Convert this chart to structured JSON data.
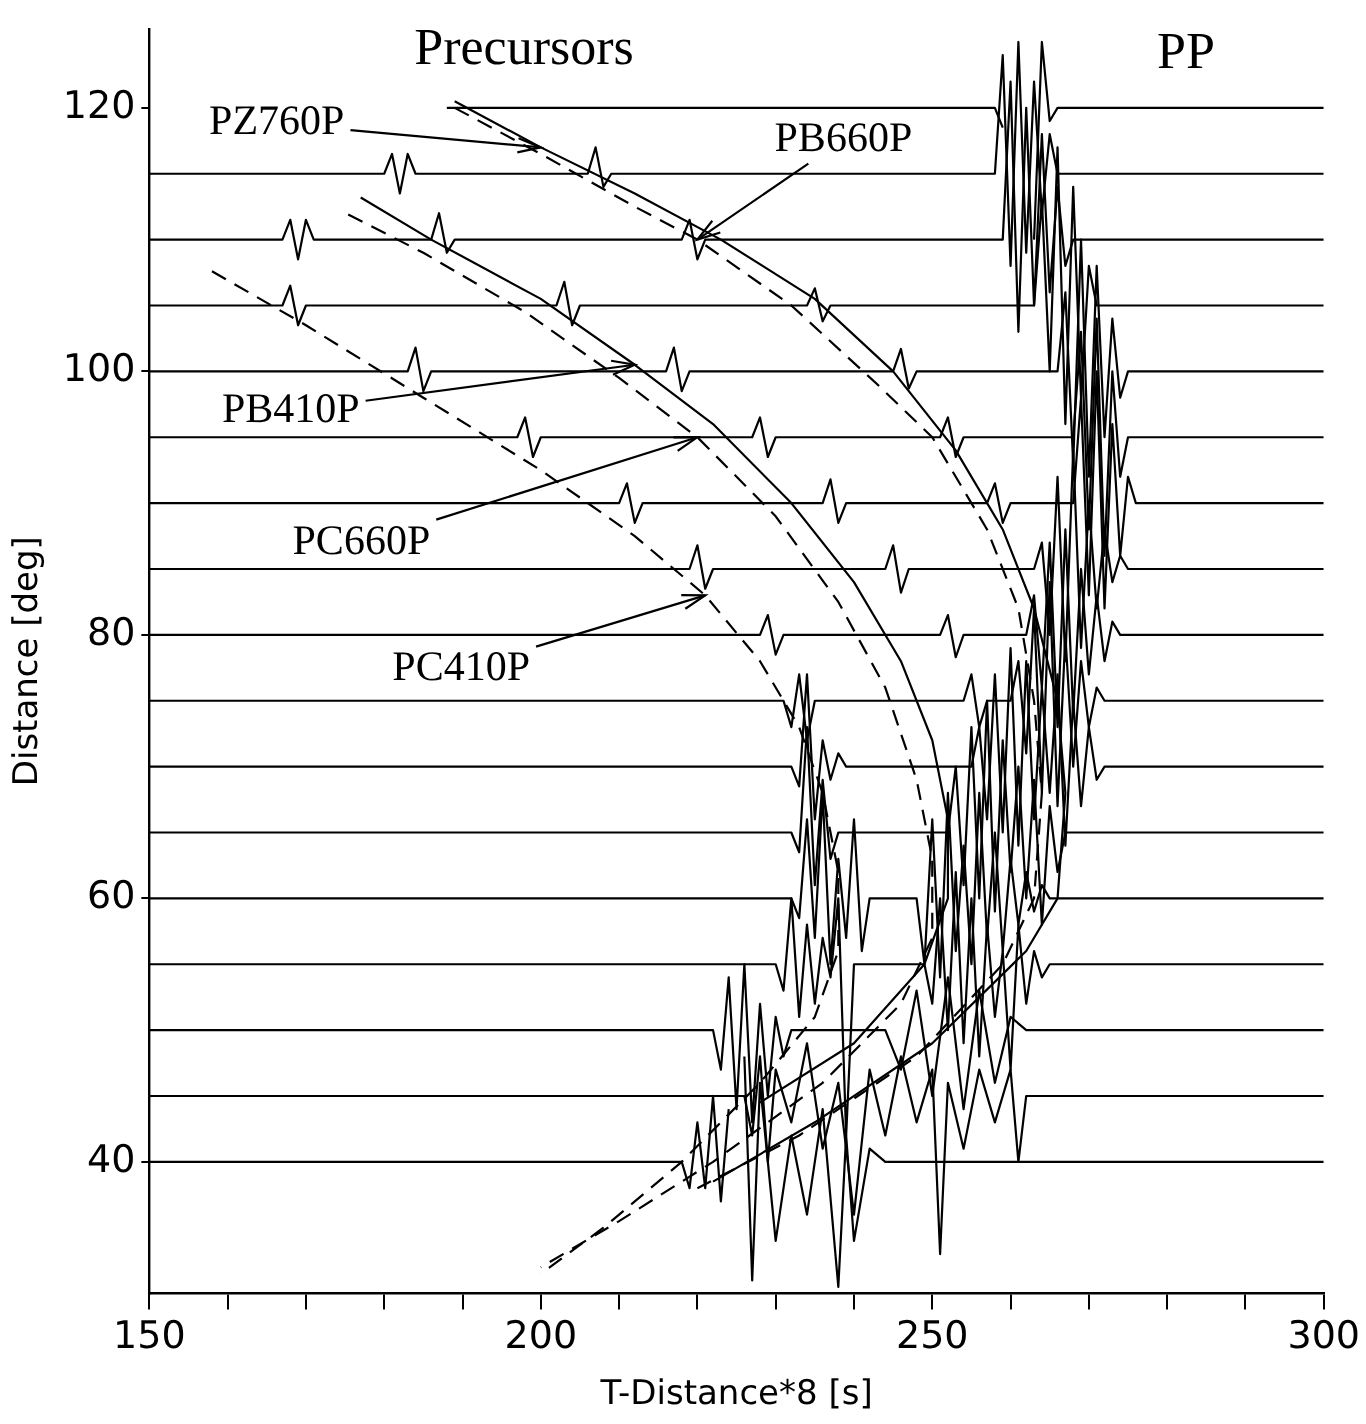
{
  "chart_data": {
    "type": "line",
    "xlabel": "T-Distance*8 [s]",
    "ylabel": "Distance [deg]",
    "xlim": [
      150,
      300
    ],
    "ylim": [
      30,
      126
    ],
    "xticks": [
      150,
      {
        "value": 160,
        "label": null
      },
      {
        "value": 170,
        "label": null
      },
      {
        "value": 180,
        "label": null
      },
      {
        "value": 190,
        "label": null
      },
      200,
      {
        "value": 210,
        "label": null
      },
      {
        "value": 220,
        "label": null
      },
      {
        "value": 230,
        "label": null
      },
      {
        "value": 240,
        "label": null
      },
      250,
      {
        "value": 260,
        "label": null
      },
      {
        "value": 270,
        "label": null
      },
      {
        "value": 280,
        "label": null
      },
      {
        "value": 290,
        "label": null
      },
      300
    ],
    "yticks": [
      40,
      60,
      80,
      100,
      120
    ],
    "grid": false,
    "legend": false,
    "marker": "none",
    "annotations": [
      "Precursors",
      "PP",
      {
        "text": "PZ760P",
        "x": 200,
        "y": 117
      },
      {
        "text": "PB660P",
        "x": 220,
        "y": 110
      },
      {
        "text": "PB410P",
        "x": 212,
        "y": 100.5
      },
      {
        "text": "PC660P",
        "x": 220,
        "y": 95
      },
      {
        "text": "PC410P",
        "x": 221,
        "y": 83
      }
    ],
    "series": [
      {
        "type": "line",
        "color": "#000000",
        "line_style": "solid",
        "x": [
          188,
          258,
          259,
          260,
          261,
          262,
          263,
          264,
          265,
          266,
          300
        ],
        "values": [
          120,
          120,
          118.5,
          null,
          null,
          null,
          110,
          125,
          119,
          120,
          120
        ]
      },
      {
        "type": "line",
        "color": "#000000",
        "line_style": "solid",
        "x": [
          150,
          180,
          181,
          182,
          183,
          184,
          206,
          207,
          208,
          209,
          258,
          259,
          260,
          261,
          262,
          263,
          264,
          265,
          266,
          267,
          300
        ],
        "values": [
          115,
          115,
          116.5,
          113.5,
          116.5,
          115,
          115,
          117,
          114,
          115,
          115,
          124,
          108,
          125,
          109,
          122,
          112,
          118,
          115,
          115,
          115
        ]
      },
      {
        "type": "line",
        "color": "#000000",
        "line_style": "solid",
        "x": [
          150,
          167,
          168,
          169,
          170,
          171,
          186,
          187,
          188,
          189,
          218,
          219,
          220,
          221,
          259,
          260,
          261,
          262,
          263,
          264,
          265,
          266,
          267,
          268,
          300
        ],
        "values": [
          110,
          110,
          111.5,
          108.5,
          111.5,
          110,
          110,
          112,
          109,
          110,
          110,
          111.5,
          108.5,
          110,
          110,
          122,
          103,
          120,
          105,
          118,
          106,
          114,
          108,
          110,
          110
        ]
      },
      {
        "type": "line",
        "color": "#000000",
        "line_style": "solid",
        "x": [
          150,
          167,
          168,
          169,
          170,
          202,
          203,
          204,
          205,
          234,
          235,
          236,
          237,
          263,
          264,
          265,
          266,
          267,
          268,
          269,
          270,
          271,
          300
        ],
        "values": [
          105,
          105,
          106.5,
          103.5,
          105,
          105,
          106.8,
          103.5,
          105,
          105,
          106.3,
          103.8,
          105,
          105,
          113,
          100,
          117,
          96,
          114,
          98,
          108,
          105,
          105
        ]
      },
      {
        "type": "line",
        "color": "#000000",
        "line_style": "solid",
        "x": [
          150,
          183,
          184,
          185,
          186,
          216,
          217,
          218,
          219,
          245,
          246,
          247,
          248,
          266,
          267,
          268,
          269,
          270,
          271,
          272,
          273,
          274,
          275,
          300
        ],
        "values": [
          100,
          100,
          101.8,
          98.5,
          100,
          100,
          101.8,
          98.5,
          100,
          100,
          101.7,
          98.7,
          100,
          100,
          106,
          93,
          110,
          92,
          108,
          95,
          104,
          98,
          100,
          100
        ]
      },
      {
        "type": "line",
        "color": "#000000",
        "line_style": "solid",
        "x": [
          150,
          197,
          198,
          199,
          200,
          227,
          228,
          229,
          230,
          251,
          252,
          253,
          254,
          268,
          269,
          270,
          271,
          272,
          273,
          274,
          275,
          300
        ],
        "values": [
          95,
          95,
          96.5,
          93.5,
          95,
          95,
          96.5,
          93.5,
          95,
          95,
          96.5,
          93.5,
          95,
          95,
          103,
          88,
          104,
          86,
          100,
          92,
          95,
          95
        ]
      },
      {
        "type": "line",
        "color": "#000000",
        "line_style": "solid",
        "x": [
          150,
          210,
          211,
          212,
          213,
          236,
          237,
          238,
          239,
          257,
          258,
          259,
          260,
          268,
          269,
          270,
          271,
          272,
          273,
          274,
          275,
          276,
          300
        ],
        "values": [
          90,
          90,
          91.5,
          88.5,
          90,
          90,
          91.8,
          88.5,
          90,
          90,
          91.5,
          88.5,
          90,
          90,
          98,
          83,
          100,
          82,
          96,
          86,
          92,
          90,
          90
        ]
      },
      {
        "type": "line",
        "color": "#000000",
        "line_style": "solid",
        "x": [
          150,
          219,
          220,
          221,
          222,
          244,
          245,
          246,
          247,
          263,
          264,
          265,
          266,
          267,
          268,
          269,
          270,
          271,
          272,
          273,
          274,
          275,
          300
        ],
        "values": [
          85,
          85,
          86.8,
          83.5,
          85,
          85,
          86.8,
          83.2,
          85,
          85,
          87,
          80,
          92,
          78,
          94,
          79,
          90,
          82,
          88,
          84,
          86,
          85,
          85
        ]
      },
      {
        "type": "line",
        "color": "#000000",
        "line_style": "solid",
        "x": [
          150,
          228,
          229,
          230,
          231,
          251,
          252,
          253,
          254,
          262,
          263,
          264,
          265,
          266,
          267,
          268,
          269,
          270,
          271,
          272,
          273,
          274,
          300
        ],
        "values": [
          80,
          80,
          81.5,
          78.5,
          80,
          80,
          81.5,
          78.3,
          80,
          80,
          83,
          76,
          87,
          73,
          88,
          74,
          85,
          77,
          83,
          78,
          81,
          80,
          80
        ]
      },
      {
        "type": "line",
        "color": "#000000",
        "line_style": "solid",
        "x": [
          150,
          231,
          232,
          233,
          234,
          235,
          254,
          255,
          256,
          257,
          260,
          261,
          262,
          263,
          264,
          265,
          266,
          267,
          268,
          269,
          270,
          271,
          272,
          300
        ],
        "values": [
          75,
          75,
          73,
          77,
          72,
          75,
          75,
          77,
          73,
          75,
          75,
          78,
          71,
          82,
          68,
          84,
          67,
          80,
          70,
          78,
          73,
          76,
          75,
          75
        ]
      },
      {
        "type": "line",
        "color": "#000000",
        "line_style": "solid",
        "x": [
          150,
          232,
          233,
          234,
          235,
          236,
          237,
          238,
          239,
          255,
          256,
          257,
          258,
          259,
          260,
          261,
          262,
          263,
          264,
          265,
          266,
          267,
          268,
          269,
          270,
          271,
          272,
          300
        ],
        "values": [
          70,
          70,
          68.5,
          77,
          66,
          72,
          69,
          71,
          70,
          70,
          73,
          66,
          77,
          65,
          79,
          64,
          78,
          66,
          76,
          68,
          77,
          64,
          75,
          67,
          73,
          69,
          70,
          70
        ]
      },
      {
        "type": "line",
        "color": "#000000",
        "line_style": "solid",
        "x": [
          150,
          232,
          233,
          234,
          235,
          236,
          237,
          238,
          252,
          253,
          254,
          255,
          256,
          257,
          258,
          259,
          260,
          261,
          262,
          263,
          264,
          265,
          266,
          267,
          268,
          300
        ],
        "values": [
          65,
          65,
          63.5,
          73,
          61,
          69,
          63,
          65,
          65,
          70,
          61,
          73,
          60,
          75,
          59,
          72,
          62,
          70,
          60,
          69,
          58,
          67,
          62,
          65,
          65,
          65
        ]
      },
      {
        "type": "line",
        "color": "#000000",
        "line_style": "solid",
        "x": [
          150,
          232,
          233,
          234,
          235,
          236,
          237,
          238,
          239,
          240,
          241,
          242,
          248,
          249,
          250,
          251,
          252,
          253,
          254,
          255,
          256,
          257,
          258,
          259,
          260,
          261,
          262,
          263,
          264,
          265,
          300
        ],
        "values": [
          60,
          60,
          58.5,
          66,
          57,
          68,
          55,
          63,
          57,
          66,
          56,
          60,
          60,
          55,
          66,
          54,
          68,
          56,
          64,
          55,
          68,
          57,
          65,
          56,
          63,
          58,
          62,
          59,
          61,
          60,
          60
        ]
      },
      {
        "type": "line",
        "color": "#000000",
        "line_style": "solid",
        "x": [
          150,
          230,
          231,
          232,
          233,
          234,
          235,
          236,
          237,
          238,
          239,
          240,
          249,
          250,
          251,
          252,
          253,
          254,
          255,
          256,
          257,
          258,
          259,
          260,
          261,
          262,
          263,
          264,
          265,
          300
        ],
        "values": [
          55,
          55,
          53,
          60,
          51,
          58,
          52,
          57,
          54,
          60,
          42,
          55,
          55,
          52,
          60,
          50,
          62,
          49,
          60,
          48,
          58,
          51,
          56,
          47,
          58,
          52,
          56,
          54,
          55,
          55
        ]
      },
      {
        "type": "line",
        "color": "#000000",
        "line_style": "solid",
        "x": [
          150,
          222,
          223,
          224,
          225,
          226,
          227,
          228,
          229,
          230,
          231,
          232,
          244,
          246,
          248,
          250,
          252,
          254,
          256,
          258,
          260,
          262,
          300
        ],
        "values": [
          50,
          50,
          47,
          54,
          44,
          55,
          43,
          52,
          45,
          51,
          48,
          50,
          50,
          47,
          53,
          45,
          54,
          44,
          53,
          46,
          51,
          50,
          50
        ]
      },
      {
        "type": "line",
        "color": "#000000",
        "line_style": "solid",
        "x": [
          150,
          226,
          227,
          228,
          229,
          230,
          232,
          234,
          236,
          238,
          240,
          242,
          244,
          246,
          248,
          250,
          251,
          252,
          254,
          256,
          258,
          260,
          261,
          262,
          300
        ],
        "values": [
          45,
          45,
          42,
          48,
          40,
          47,
          43,
          49,
          41,
          46,
          36,
          47,
          42,
          48,
          43,
          47,
          33,
          46,
          41,
          47,
          43,
          47,
          40,
          45,
          45
        ]
      },
      {
        "type": "line",
        "color": "#000000",
        "line_style": "solid",
        "x": [
          150,
          218,
          219,
          220,
          221,
          222,
          223,
          224,
          225,
          226,
          227,
          228,
          230,
          232,
          234,
          236,
          238,
          239,
          240,
          242,
          244,
          300
        ],
        "values": [
          40,
          40,
          38,
          43,
          38,
          45,
          37,
          44,
          null,
          48,
          31,
          46,
          34,
          42,
          36,
          44,
          30.5,
          42,
          34,
          41,
          40,
          40
        ]
      },
      {
        "type": "line",
        "color": "#000000",
        "line_style": "solid",
        "x": [
          189,
          200,
          212,
          223,
          235,
          245,
          253,
          259,
          263,
          266,
          267,
          266,
          262,
          250,
          235,
          222
        ],
        "values": [
          120.5,
          117,
          113.5,
          110,
          105.5,
          100,
          94,
          88,
          82,
          75,
          68,
          60,
          56,
          49,
          43,
          38.5
        ]
      },
      {
        "type": "line",
        "color": "#000000",
        "line_style": "dashed",
        "x": [
          189,
          200,
          212,
          220,
          232,
          243,
          250,
          257,
          261,
          263,
          264,
          263,
          259,
          248,
          233,
          220
        ],
        "values": [
          120,
          116.5,
          112.5,
          110,
          105,
          99,
          95,
          88,
          82,
          75,
          68,
          60,
          55,
          48,
          42,
          38
        ]
      },
      {
        "type": "line",
        "color": "#000000",
        "line_style": "solid",
        "x": [
          177,
          186,
          200,
          212,
          222,
          232,
          240,
          246,
          250,
          252,
          252,
          249,
          240,
          228
        ],
        "values": [
          113.2,
          110,
          105.5,
          100.5,
          96,
          90,
          84,
          78,
          72,
          66,
          60,
          55,
          49,
          44.5
        ]
      },
      {
        "type": "line",
        "color": "#000000",
        "line_style": "dashed",
        "x": [
          175.4,
          185,
          198,
          210,
          220,
          230,
          238,
          244,
          248,
          250,
          250,
          246,
          236,
          222,
          210,
          200
        ],
        "values": [
          111.9,
          109,
          104.5,
          99.5,
          95,
          89,
          82.5,
          76,
          69,
          63,
          57,
          52,
          46,
          40,
          35.5,
          32
        ]
      },
      {
        "type": "line",
        "color": "#000000",
        "line_style": "dashed",
        "x": [
          158,
          170,
          185,
          200,
          212,
          221,
          228,
          233,
          236,
          238,
          238,
          235,
          228,
          218,
          208,
          200
        ],
        "values": [
          107.6,
          103.5,
          98,
          92.5,
          87.5,
          83,
          78,
          73,
          68,
          62,
          56,
          51,
          46,
          40,
          35,
          31.5
        ]
      }
    ]
  }
}
